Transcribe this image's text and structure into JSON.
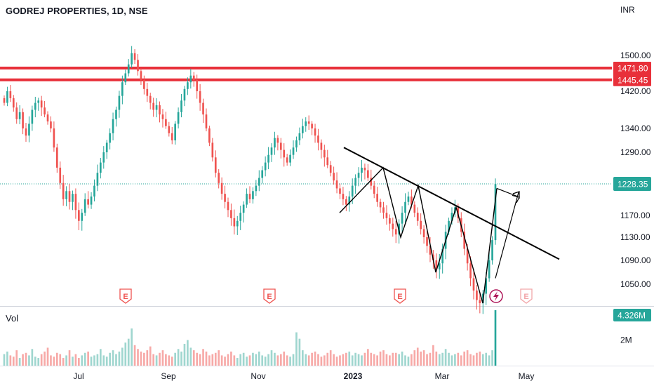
{
  "header": {
    "title": "GODREJ PROPERTIES, 1D, NSE"
  },
  "currency": "INR",
  "volume_pane": {
    "label": "Vol",
    "last_value": "4.326M",
    "axis_tick": "2M"
  },
  "colors": {
    "up": "#26a69a",
    "down": "#ef5350",
    "vol_up": "#9fd6cf",
    "vol_down": "#f7a9a7",
    "level_line": "#e8303a",
    "last_tag": "#26a69a",
    "trendline": "#000000",
    "grid": "#f0f3fa"
  },
  "icons": [
    "earnings-icon",
    "lightning-icon"
  ],
  "chart_data": {
    "type": "candlestick",
    "symbol": "GODREJ PROPERTIES",
    "interval": "1D",
    "exchange": "NSE",
    "y_axis": {
      "ticks": [
        "1500.00",
        "1420.00",
        "1340.00",
        "1290.00",
        "1170.00",
        "1130.00",
        "1090.00",
        "1050.00"
      ],
      "range": [
        1020,
        1560
      ]
    },
    "x_axis": {
      "labels": [
        "Jul",
        "Sep",
        "Nov",
        "2023",
        "Mar",
        "May"
      ]
    },
    "horizontal_levels": [
      {
        "value": 1471.8,
        "label": "1471.80"
      },
      {
        "value": 1445.45,
        "label": "1445.45"
      }
    ],
    "last_price": {
      "value": 1228.35,
      "label": "1228.35"
    },
    "earnings_markers": [
      "E",
      "E",
      "E",
      "E"
    ],
    "trendline": {
      "from": [
        "Dec",
        1300
      ],
      "to": [
        "Apr",
        1090
      ]
    },
    "pattern_zigzag_closes": [
      1175,
      1260,
      1130,
      1225,
      1070,
      1185,
      1020,
      1220
    ],
    "closes": [
      1395,
      1420,
      1405,
      1385,
      1360,
      1375,
      1340,
      1325,
      1350,
      1380,
      1395,
      1400,
      1385,
      1370,
      1355,
      1340,
      1300,
      1260,
      1230,
      1200,
      1215,
      1195,
      1210,
      1180,
      1160,
      1175,
      1200,
      1190,
      1205,
      1225,
      1250,
      1270,
      1290,
      1310,
      1330,
      1360,
      1380,
      1410,
      1440,
      1460,
      1480,
      1505,
      1490,
      1465,
      1445,
      1425,
      1410,
      1395,
      1380,
      1390,
      1370,
      1360,
      1345,
      1330,
      1315,
      1350,
      1375,
      1400,
      1425,
      1440,
      1455,
      1445,
      1420,
      1395,
      1370,
      1340,
      1310,
      1280,
      1250,
      1230,
      1210,
      1195,
      1180,
      1165,
      1150,
      1160,
      1175,
      1190,
      1210,
      1200,
      1215,
      1225,
      1240,
      1255,
      1270,
      1285,
      1300,
      1320,
      1310,
      1295,
      1280,
      1270,
      1285,
      1300,
      1315,
      1330,
      1345,
      1355,
      1350,
      1340,
      1325,
      1310,
      1295,
      1280,
      1265,
      1250,
      1235,
      1220,
      1210,
      1200,
      1190,
      1205,
      1225,
      1240,
      1250,
      1260,
      1255,
      1240,
      1225,
      1210,
      1195,
      1185,
      1175,
      1165,
      1155,
      1145,
      1135,
      1155,
      1175,
      1195,
      1205,
      1190,
      1175,
      1160,
      1145,
      1130,
      1115,
      1100,
      1090,
      1075,
      1085,
      1110,
      1140,
      1160,
      1175,
      1185,
      1165,
      1140,
      1110,
      1085,
      1060,
      1040,
      1025,
      1020,
      1035,
      1060,
      1090,
      1125,
      1228
    ],
    "volumes": [
      0.9,
      1.1,
      0.8,
      0.7,
      1.2,
      0.6,
      0.9,
      1.0,
      0.8,
      1.3,
      0.7,
      0.6,
      0.9,
      1.1,
      1.4,
      0.8,
      0.7,
      1.0,
      0.9,
      0.6,
      0.8,
      1.2,
      0.7,
      0.9,
      0.6,
      0.8,
      1.0,
      1.1,
      0.7,
      0.8,
      0.9,
      1.3,
      0.8,
      0.7,
      1.0,
      1.2,
      0.9,
      1.1,
      1.4,
      1.8,
      2.1,
      2.9,
      1.6,
      1.3,
      1.1,
      1.0,
      1.2,
      1.5,
      0.9,
      0.8,
      1.0,
      1.2,
      0.9,
      0.8,
      0.7,
      1.0,
      1.3,
      1.1,
      1.7,
      2.0,
      1.4,
      1.2,
      1.0,
      0.9,
      1.3,
      1.1,
      0.8,
      0.9,
      1.0,
      1.2,
      0.8,
      0.7,
      0.9,
      1.1,
      0.8,
      0.6,
      0.9,
      1.0,
      0.7,
      0.8,
      1.0,
      0.9,
      1.1,
      0.8,
      0.7,
      0.9,
      1.2,
      1.0,
      0.8,
      0.9,
      1.1,
      0.8,
      0.7,
      0.9,
      2.6,
      2.1,
      1.2,
      0.9,
      0.8,
      1.0,
      1.1,
      0.9,
      0.7,
      0.8,
      1.0,
      1.2,
      0.9,
      0.7,
      0.8,
      0.9,
      1.0,
      1.1,
      0.8,
      1.0,
      0.9,
      0.8,
      1.0,
      1.3,
      1.0,
      0.9,
      0.8,
      1.1,
      1.2,
      0.9,
      0.8,
      1.0,
      1.0,
      0.9,
      1.1,
      0.8,
      0.7,
      0.9,
      1.2,
      1.4,
      1.1,
      1.2,
      0.9,
      1.0,
      1.6,
      1.1,
      0.9,
      1.0,
      1.3,
      1.0,
      0.8,
      0.9,
      1.0,
      0.8,
      1.1,
      1.2,
      0.9,
      0.8,
      1.0,
      1.1,
      0.9,
      1.0,
      0.8,
      1.2,
      4.326
    ]
  }
}
